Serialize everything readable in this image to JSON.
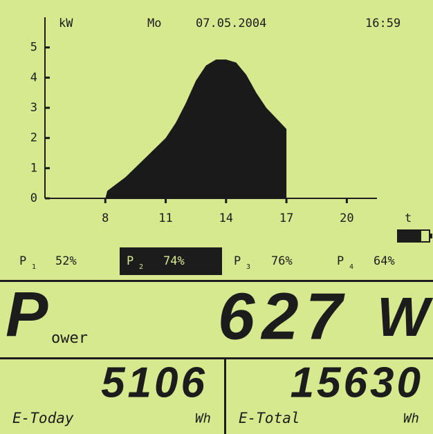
{
  "header": {
    "day": "Mo",
    "date": "07.05.2004",
    "time": "16:59"
  },
  "chart_data": {
    "type": "area",
    "y_label": "kW",
    "x_label": "t",
    "x": [
      8,
      8.1,
      8.5,
      9,
      10,
      11,
      11.5,
      12,
      12.5,
      13,
      13.5,
      14,
      14.5,
      15,
      15.5,
      16,
      16.5,
      17,
      17
    ],
    "values": [
      0,
      0.25,
      0.45,
      0.7,
      1.35,
      2.0,
      2.5,
      3.15,
      3.9,
      4.4,
      4.6,
      4.6,
      4.5,
      4.1,
      3.5,
      3.0,
      2.65,
      2.3,
      0
    ],
    "color": "#1a1a1a",
    "xlim": [
      5,
      21.5
    ],
    "ylim": [
      0,
      6
    ],
    "xticks": [
      8,
      11,
      14,
      17,
      20
    ],
    "yticks": [
      0,
      1,
      2,
      3,
      4,
      5
    ]
  },
  "phases": [
    {
      "name": "P",
      "index": "1",
      "value": "52%"
    },
    {
      "name": "P",
      "index": "2",
      "value": "74%"
    },
    {
      "name": "P",
      "index": "3",
      "value": "76%"
    },
    {
      "name": "P",
      "index": "4",
      "value": "64%"
    }
  ],
  "power": {
    "initial": "P",
    "rest": "ower",
    "value": "627",
    "unit": "W"
  },
  "energy": [
    {
      "label": "E-Today",
      "value": "5106",
      "unit": "Wh"
    },
    {
      "label": "E-Total",
      "value": "15630",
      "unit": "Wh"
    }
  ]
}
